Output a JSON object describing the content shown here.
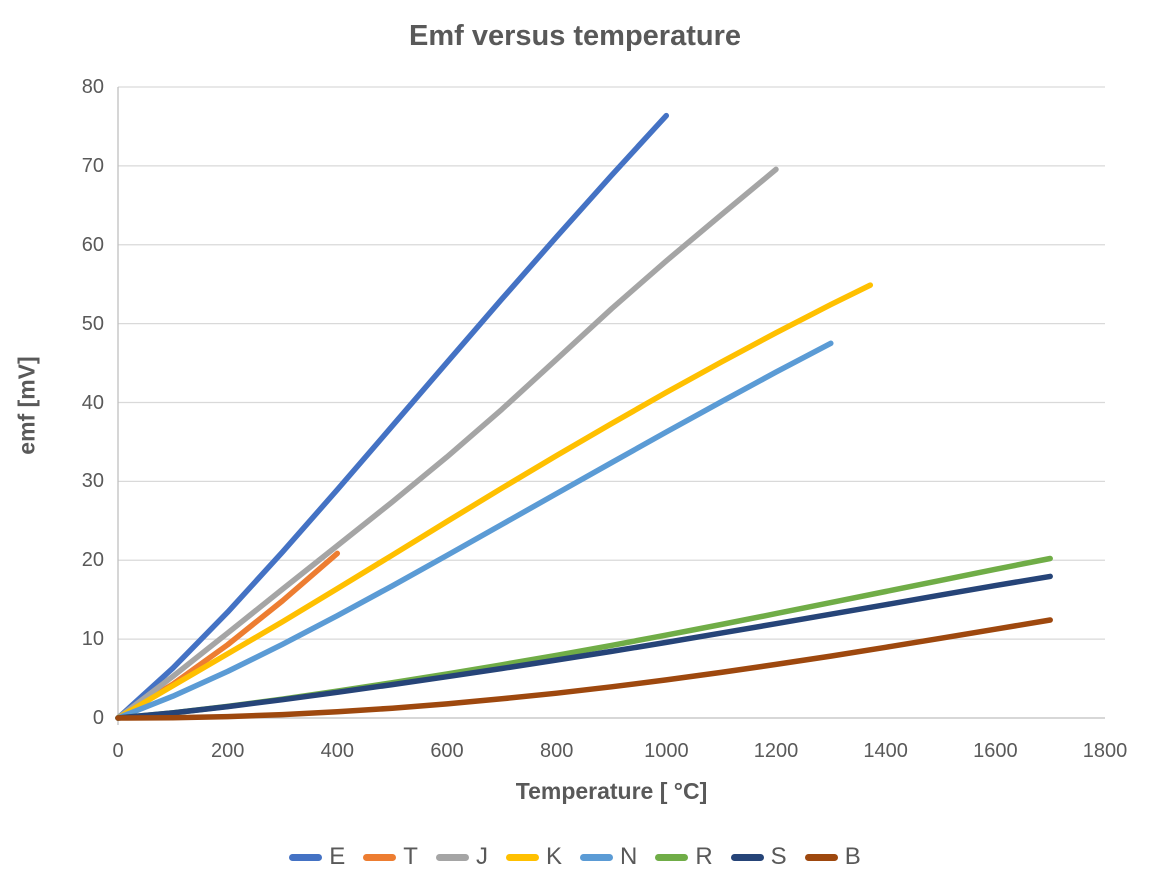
{
  "chart_data": {
    "type": "line",
    "title": "Emf versus temperature",
    "xlabel": "Temperature [ °C]",
    "ylabel": "emf [mV]",
    "xlim": [
      0,
      1800
    ],
    "ylim": [
      0,
      80
    ],
    "xticks": [
      0,
      200,
      400,
      600,
      800,
      1000,
      1200,
      1400,
      1600,
      1800
    ],
    "yticks": [
      0,
      10,
      20,
      30,
      40,
      50,
      60,
      70,
      80
    ],
    "grid": "horizontal-only",
    "legend_position": "bottom",
    "series": [
      {
        "name": "E",
        "color": "#4472C4",
        "x": [
          0,
          100,
          200,
          300,
          400,
          500,
          600,
          700,
          800,
          900,
          1000
        ],
        "y": [
          0,
          6.32,
          13.42,
          21.04,
          28.95,
          37.01,
          45.09,
          53.11,
          61.02,
          68.79,
          76.37
        ]
      },
      {
        "name": "T",
        "color": "#ED7D31",
        "x": [
          0,
          100,
          200,
          300,
          400
        ],
        "y": [
          0,
          4.28,
          9.29,
          14.86,
          20.87
        ]
      },
      {
        "name": "J",
        "color": "#A5A5A5",
        "x": [
          0,
          100,
          200,
          300,
          400,
          500,
          600,
          700,
          800,
          900,
          1000,
          1100,
          1200
        ],
        "y": [
          0,
          5.27,
          10.78,
          16.33,
          21.85,
          27.39,
          33.1,
          39.13,
          45.49,
          51.88,
          57.95,
          63.79,
          69.55
        ]
      },
      {
        "name": "K",
        "color": "#FFC000",
        "x": [
          0,
          100,
          200,
          300,
          400,
          500,
          600,
          700,
          800,
          900,
          1000,
          1100,
          1200,
          1300,
          1372
        ],
        "y": [
          0,
          4.1,
          8.14,
          12.21,
          16.4,
          20.64,
          24.91,
          29.13,
          33.28,
          37.33,
          41.28,
          45.12,
          48.84,
          52.41,
          54.89
        ]
      },
      {
        "name": "N",
        "color": "#5B9BD5",
        "x": [
          0,
          100,
          200,
          300,
          400,
          500,
          600,
          700,
          800,
          900,
          1000,
          1100,
          1200,
          1300
        ],
        "y": [
          0,
          2.77,
          5.91,
          9.34,
          12.97,
          16.75,
          20.61,
          24.53,
          28.46,
          32.37,
          36.26,
          40.09,
          43.85,
          47.51
        ]
      },
      {
        "name": "R",
        "color": "#70AD47",
        "x": [
          0,
          100,
          200,
          300,
          400,
          500,
          600,
          700,
          800,
          900,
          1000,
          1100,
          1200,
          1300,
          1400,
          1500,
          1600,
          1700
        ],
        "y": [
          0,
          0.65,
          1.47,
          2.4,
          3.41,
          4.47,
          5.58,
          6.74,
          7.95,
          9.21,
          10.51,
          11.85,
          13.23,
          14.63,
          16.04,
          17.45,
          18.85,
          20.22
        ]
      },
      {
        "name": "S",
        "color": "#264478",
        "x": [
          0,
          100,
          200,
          300,
          400,
          500,
          600,
          700,
          800,
          900,
          1000,
          1100,
          1200,
          1300,
          1400,
          1500,
          1600,
          1700
        ],
        "y": [
          0,
          0.65,
          1.44,
          2.32,
          3.26,
          4.23,
          5.24,
          6.28,
          7.35,
          8.45,
          9.59,
          10.76,
          11.95,
          13.16,
          14.37,
          15.58,
          16.78,
          17.95
        ]
      },
      {
        "name": "B",
        "color": "#9E480E",
        "x": [
          0,
          100,
          200,
          300,
          400,
          500,
          600,
          700,
          800,
          900,
          1000,
          1100,
          1200,
          1300,
          1400,
          1500,
          1600,
          1700
        ],
        "y": [
          0,
          0.03,
          0.18,
          0.43,
          0.79,
          1.24,
          1.79,
          2.43,
          3.15,
          3.96,
          4.83,
          5.78,
          6.79,
          7.85,
          8.96,
          10.1,
          11.26,
          12.43
        ]
      }
    ]
  },
  "colors": {
    "text": "#595959",
    "gridline": "#D9D9D9",
    "axis_line": "#BFBFBF",
    "background": "#FFFFFF"
  }
}
